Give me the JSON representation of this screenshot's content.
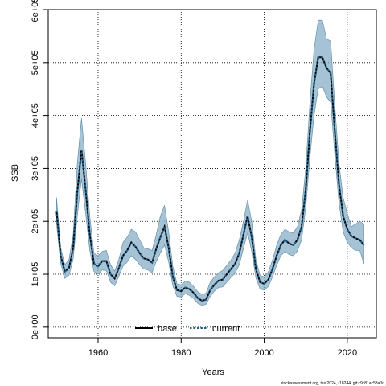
{
  "chart_data": {
    "type": "line",
    "title": "",
    "xlabel": "Years",
    "ylabel": "SSB",
    "xlim": [
      1948,
      2027
    ],
    "ylim": [
      -20000,
      600000
    ],
    "x_ticks": [
      1960,
      1980,
      2000,
      2020
    ],
    "x_tick_labels": [
      "1960",
      "1980",
      "2000",
      "2020"
    ],
    "y_ticks": [
      0,
      100000,
      200000,
      300000,
      400000,
      500000,
      600000
    ],
    "y_tick_labels": [
      "0e+00",
      "1e+05",
      "2e+05",
      "3e+05",
      "4e+05",
      "5e+05",
      "6e+05"
    ],
    "grid": true,
    "legend": {
      "placement": "bottom-center",
      "entries": [
        "base",
        "current"
      ]
    },
    "footer": "stockassessment.org, test2024, r18244, git:c9c81ac53a0d",
    "colors": {
      "base": "#000000",
      "current": "#1f5f8b",
      "band": "#7faac2",
      "band_edge": "#5a8aa6"
    },
    "x": [
      1950,
      1951,
      1952,
      1953,
      1954,
      1955,
      1956,
      1957,
      1958,
      1959,
      1960,
      1961,
      1962,
      1963,
      1964,
      1965,
      1966,
      1967,
      1968,
      1969,
      1970,
      1971,
      1972,
      1973,
      1974,
      1975,
      1976,
      1977,
      1978,
      1979,
      1980,
      1981,
      1982,
      1983,
      1984,
      1985,
      1986,
      1987,
      1988,
      1989,
      1990,
      1991,
      1992,
      1993,
      1994,
      1995,
      1996,
      1997,
      1998,
      1999,
      2000,
      2001,
      2002,
      2003,
      2004,
      2005,
      2006,
      2007,
      2008,
      2009,
      2010,
      2011,
      2012,
      2013,
      2014,
      2015,
      2016,
      2017,
      2018,
      2019,
      2020,
      2021,
      2022,
      2023,
      2024
    ],
    "series": [
      {
        "name": "base",
        "values": [
          220000,
          135000,
          105000,
          112000,
          150000,
          255000,
          335000,
          260000,
          175000,
          120000,
          115000,
          125000,
          125000,
          100000,
          92000,
          112000,
          135000,
          145000,
          160000,
          152000,
          140000,
          130000,
          128000,
          122000,
          148000,
          170000,
          190000,
          150000,
          95000,
          70000,
          68000,
          75000,
          72000,
          65000,
          55000,
          50000,
          52000,
          70000,
          80000,
          88000,
          90000,
          100000,
          110000,
          120000,
          140000,
          175000,
          210000,
          170000,
          110000,
          85000,
          82000,
          90000,
          110000,
          135000,
          155000,
          165000,
          158000,
          155000,
          165000,
          190000,
          260000,
          370000,
          460000,
          510000,
          510000,
          490000,
          480000,
          370000,
          270000,
          210000,
          185000,
          172000,
          168000,
          165000,
          155000
        ]
      },
      {
        "name": "current",
        "values": [
          220000,
          135000,
          105000,
          112000,
          150000,
          255000,
          335000,
          260000,
          175000,
          120000,
          115000,
          125000,
          125000,
          100000,
          92000,
          112000,
          135000,
          145000,
          160000,
          152000,
          140000,
          130000,
          128000,
          122000,
          148000,
          170000,
          190000,
          150000,
          95000,
          70000,
          68000,
          75000,
          72000,
          65000,
          55000,
          50000,
          52000,
          70000,
          80000,
          88000,
          90000,
          100000,
          110000,
          120000,
          140000,
          175000,
          210000,
          170000,
          110000,
          85000,
          82000,
          90000,
          110000,
          135000,
          155000,
          165000,
          158000,
          155000,
          165000,
          190000,
          260000,
          370000,
          460000,
          510000,
          510000,
          490000,
          480000,
          370000,
          270000,
          210000,
          185000,
          172000,
          168000,
          165000,
          155000
        ]
      }
    ],
    "band": {
      "upper": [
        245000,
        150000,
        118000,
        128000,
        175000,
        310000,
        395000,
        310000,
        210000,
        140000,
        135000,
        143000,
        145000,
        118000,
        106000,
        128000,
        160000,
        170000,
        185000,
        180000,
        165000,
        150000,
        148000,
        145000,
        175000,
        210000,
        230000,
        180000,
        115000,
        82000,
        80000,
        87000,
        85000,
        77000,
        67000,
        62000,
        64000,
        85000,
        95000,
        103000,
        107000,
        117000,
        127000,
        140000,
        165000,
        200000,
        240000,
        200000,
        128000,
        98000,
        95000,
        105000,
        127000,
        155000,
        175000,
        185000,
        180000,
        178000,
        190000,
        222000,
        300000,
        425000,
        525000,
        580000,
        580000,
        545000,
        540000,
        420000,
        310000,
        245000,
        215000,
        190000,
        195000,
        200000,
        195000
      ],
      "lower": [
        195000,
        120000,
        92000,
        98000,
        128000,
        210000,
        280000,
        215000,
        145000,
        105000,
        100000,
        108000,
        107000,
        85000,
        78000,
        96000,
        115000,
        123000,
        135000,
        128000,
        118000,
        110000,
        108000,
        103000,
        124000,
        140000,
        155000,
        123000,
        78000,
        58000,
        57000,
        63000,
        60000,
        54000,
        45000,
        41000,
        43000,
        58000,
        68000,
        75000,
        76000,
        85000,
        94000,
        102000,
        118000,
        148000,
        178000,
        143000,
        93000,
        72000,
        70000,
        77000,
        95000,
        117000,
        135000,
        143000,
        137000,
        135000,
        144000,
        165000,
        225000,
        320000,
        400000,
        450000,
        455000,
        435000,
        425000,
        325000,
        235000,
        180000,
        160000,
        150000,
        145000,
        145000,
        120000
      ]
    }
  }
}
